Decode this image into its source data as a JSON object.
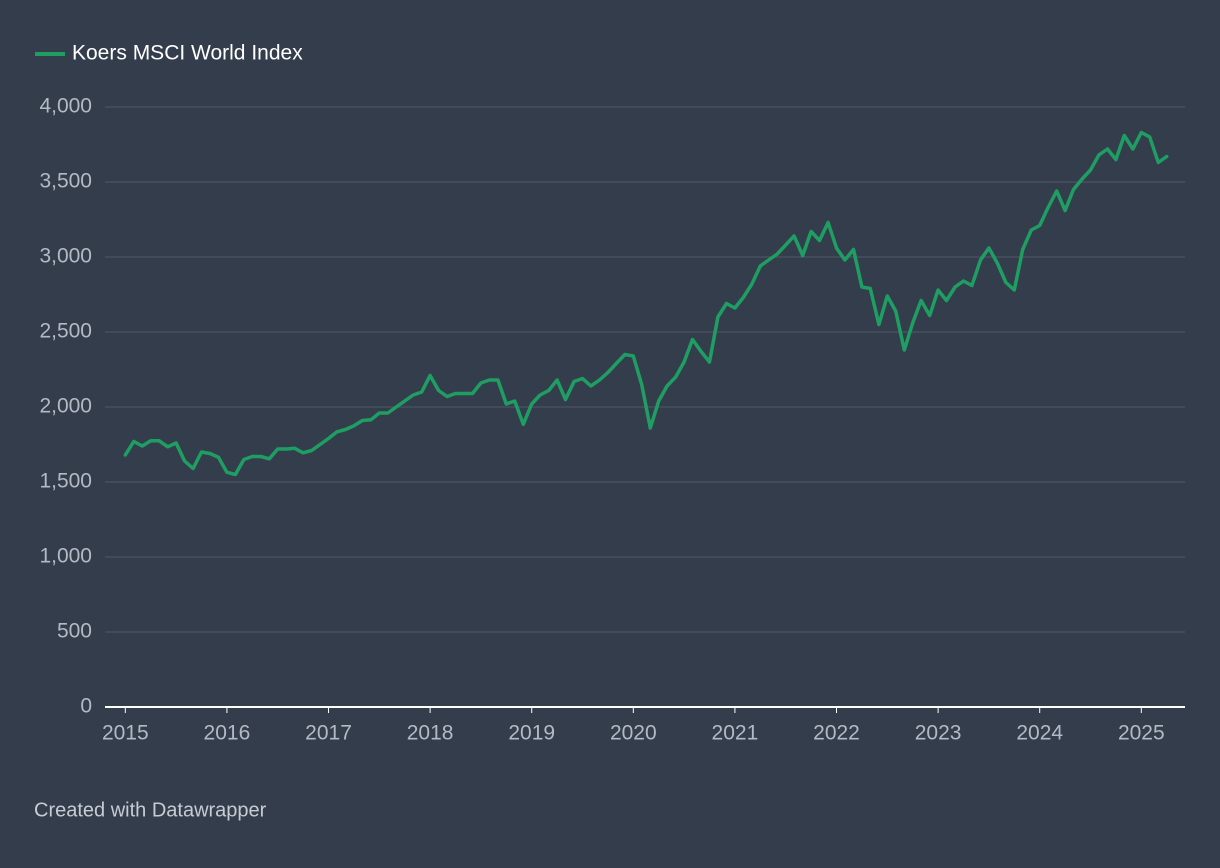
{
  "chart_data": {
    "type": "line",
    "legend": "top-left",
    "grid": true,
    "footer": "Created with Datawrapper",
    "series": [
      {
        "name": "Koers MSCI World Index",
        "color": "#1f9e63",
        "x": [
          2015,
          2015.083,
          2015.167,
          2015.25,
          2015.333,
          2015.417,
          2015.5,
          2015.583,
          2015.667,
          2015.75,
          2015.833,
          2015.917,
          2016,
          2016.083,
          2016.167,
          2016.25,
          2016.333,
          2016.417,
          2016.5,
          2016.583,
          2016.667,
          2016.75,
          2016.833,
          2016.917,
          2017,
          2017.083,
          2017.167,
          2017.25,
          2017.333,
          2017.417,
          2017.5,
          2017.583,
          2017.667,
          2017.75,
          2017.833,
          2017.917,
          2018,
          2018.083,
          2018.167,
          2018.25,
          2018.333,
          2018.417,
          2018.5,
          2018.583,
          2018.667,
          2018.75,
          2018.833,
          2018.917,
          2019,
          2019.083,
          2019.167,
          2019.25,
          2019.333,
          2019.417,
          2019.5,
          2019.583,
          2019.667,
          2019.75,
          2019.833,
          2019.917,
          2020,
          2020.083,
          2020.167,
          2020.25,
          2020.333,
          2020.417,
          2020.5,
          2020.583,
          2020.667,
          2020.75,
          2020.833,
          2020.917,
          2021,
          2021.083,
          2021.167,
          2021.25,
          2021.333,
          2021.417,
          2021.5,
          2021.583,
          2021.667,
          2021.75,
          2021.833,
          2021.917,
          2022,
          2022.083,
          2022.167,
          2022.25,
          2022.333,
          2022.417,
          2022.5,
          2022.583,
          2022.667,
          2022.75,
          2022.833,
          2022.917,
          2023,
          2023.083,
          2023.167,
          2023.25,
          2023.333,
          2023.417,
          2023.5,
          2023.583,
          2023.667,
          2023.75,
          2023.833,
          2023.917,
          2024,
          2024.083,
          2024.167,
          2024.25,
          2024.333,
          2024.417,
          2024.5,
          2024.583,
          2024.667,
          2024.75,
          2024.833,
          2024.917,
          2025,
          2025.083,
          2025.167,
          2025.25
        ],
        "values": [
          1680,
          1770,
          1740,
          1775,
          1775,
          1735,
          1760,
          1640,
          1590,
          1700,
          1690,
          1665,
          1565,
          1550,
          1650,
          1670,
          1670,
          1655,
          1720,
          1720,
          1725,
          1695,
          1710,
          1750,
          1790,
          1835,
          1850,
          1875,
          1910,
          1915,
          1960,
          1960,
          2000,
          2040,
          2080,
          2100,
          2210,
          2110,
          2070,
          2090,
          2090,
          2090,
          2160,
          2180,
          2180,
          2020,
          2040,
          1885,
          2020,
          2080,
          2110,
          2180,
          2050,
          2170,
          2190,
          2140,
          2180,
          2230,
          2290,
          2350,
          2340,
          2150,
          1860,
          2040,
          2140,
          2200,
          2300,
          2450,
          2370,
          2300,
          2600,
          2690,
          2660,
          2730,
          2820,
          2940,
          2980,
          3020,
          3080,
          3140,
          3010,
          3170,
          3110,
          3230,
          3060,
          2980,
          3050,
          2800,
          2790,
          2550,
          2740,
          2640,
          2380,
          2560,
          2710,
          2610,
          2780,
          2710,
          2800,
          2840,
          2810,
          2980,
          3060,
          2960,
          2830,
          2780,
          3050,
          3180,
          3210,
          3330,
          3440,
          3310,
          3450,
          3520,
          3580,
          3680,
          3720,
          3650,
          3810,
          3720,
          3830,
          3800,
          3630,
          3670
        ]
      }
    ],
    "xlim": [
      2014.8,
      2025.43
    ],
    "xticks": [
      2015,
      2016,
      2017,
      2018,
      2019,
      2020,
      2021,
      2022,
      2023,
      2024,
      2025
    ],
    "ylim": [
      0,
      4000
    ],
    "yticks": [
      0,
      500,
      {
        "value": 1000,
        "label": "1,000"
      },
      {
        "value": 1500,
        "label": "1,500"
      },
      {
        "value": 2000,
        "label": "2,000"
      },
      {
        "value": 2500,
        "label": "2,500"
      },
      {
        "value": 3000,
        "label": "3,000"
      },
      {
        "value": 3500,
        "label": "3,500"
      },
      {
        "value": 4000,
        "label": "4,000"
      }
    ]
  }
}
